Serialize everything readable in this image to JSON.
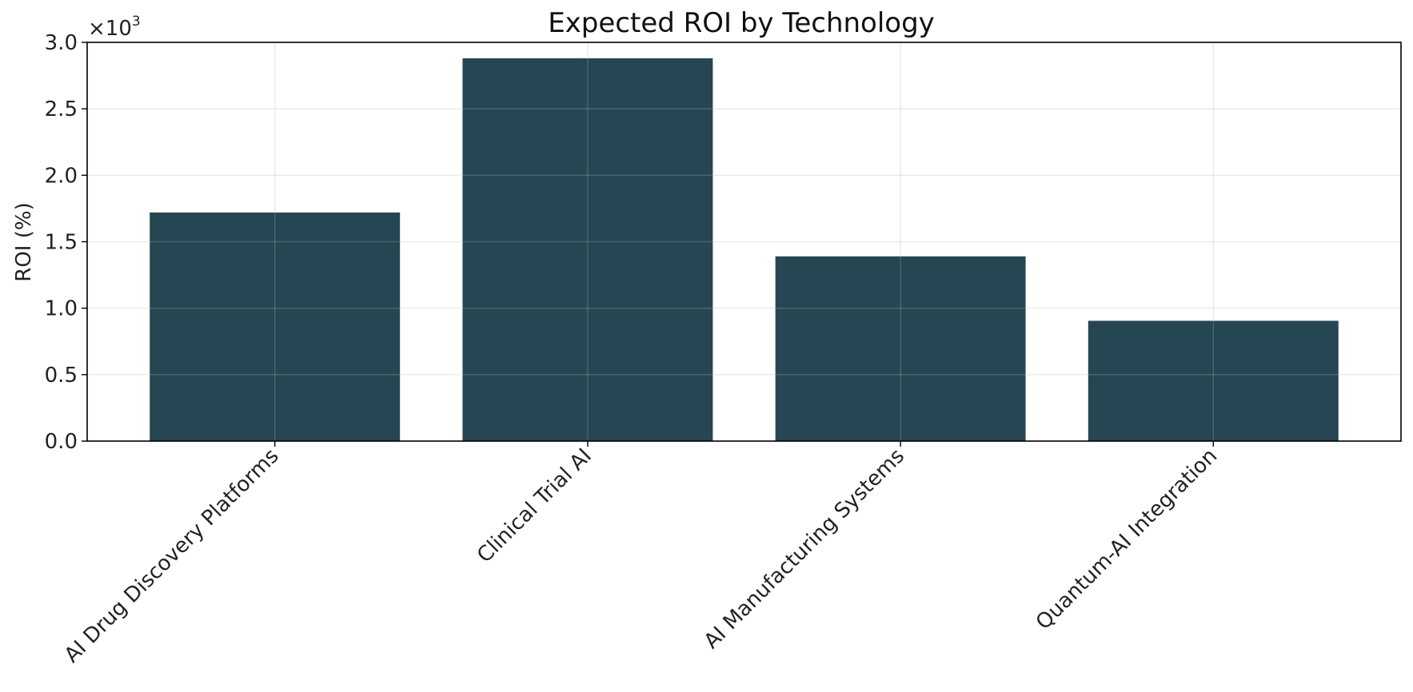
{
  "chart_data": {
    "type": "bar",
    "title": "Expected ROI by Technology",
    "xlabel": "",
    "ylabel": "ROI (%)",
    "categories": [
      "AI Drug Discovery Platforms",
      "Clinical Trial AI",
      "AI Manufacturing Systems",
      "Quantum-AI Integration"
    ],
    "values": [
      1720,
      2880,
      1390,
      905
    ],
    "ylim": [
      0,
      3000
    ],
    "yticks": [
      0,
      500,
      1000,
      1500,
      2000,
      2500,
      3000
    ],
    "ytick_labels": [
      "0.0",
      "0.5",
      "1.0",
      "1.5",
      "2.0",
      "2.5",
      "3.0"
    ],
    "y_multiplier": {
      "base": "×10",
      "exponent": "3"
    },
    "bar_color": "#274653",
    "grid": true,
    "legend": "none"
  }
}
